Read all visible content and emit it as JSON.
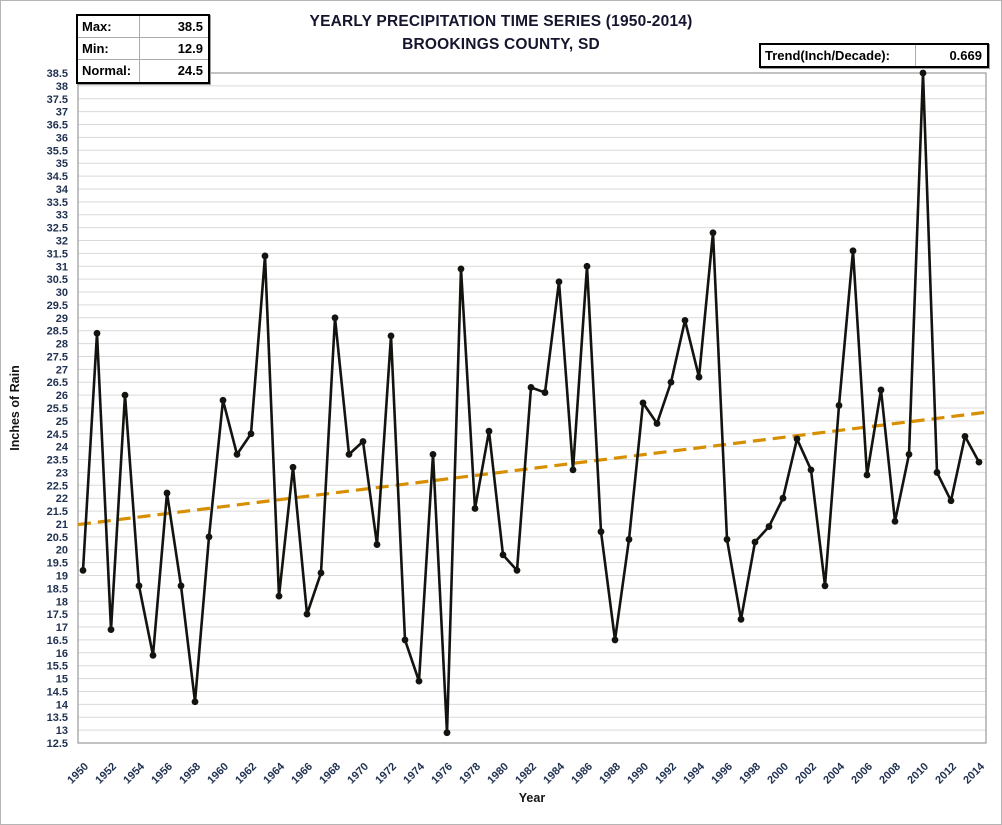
{
  "header": {
    "title_line1": "YEARLY PRECIPITATION TIME SERIES (1950-2014)",
    "title_line2": "BROOKINGS COUNTY, SD"
  },
  "stats_box": {
    "rows": [
      {
        "label": "Max:",
        "value": "38.5"
      },
      {
        "label": "Min:",
        "value": "12.9"
      },
      {
        "label": "Normal:",
        "value": "24.5"
      }
    ]
  },
  "trend_box": {
    "label": "Trend(Inch/Decade):",
    "value": "0.669"
  },
  "chart_data": {
    "type": "line",
    "title": "YEARLY PRECIPITATION TIME SERIES (1950-2014)",
    "subtitle": "BROOKINGS COUNTY, SD",
    "xlabel": "Year",
    "ylabel": "Inches of Rain",
    "ylim": [
      12.5,
      38.5
    ],
    "ytick_step": 0.5,
    "xtick_interval": 2,
    "grid": true,
    "legend_position": "none",
    "x": [
      1950,
      1951,
      1952,
      1953,
      1954,
      1955,
      1956,
      1957,
      1958,
      1959,
      1960,
      1961,
      1962,
      1963,
      1964,
      1965,
      1966,
      1967,
      1968,
      1969,
      1970,
      1971,
      1972,
      1973,
      1974,
      1975,
      1976,
      1977,
      1978,
      1979,
      1980,
      1981,
      1982,
      1983,
      1984,
      1985,
      1986,
      1987,
      1988,
      1989,
      1990,
      1991,
      1992,
      1993,
      1994,
      1995,
      1996,
      1997,
      1998,
      1999,
      2000,
      2001,
      2002,
      2003,
      2004,
      2005,
      2006,
      2007,
      2008,
      2009,
      2010,
      2011,
      2012,
      2013,
      2014
    ],
    "values": [
      19.2,
      28.4,
      16.9,
      26.0,
      18.6,
      15.9,
      22.2,
      18.6,
      14.1,
      20.5,
      25.8,
      23.7,
      24.5,
      31.4,
      18.2,
      23.2,
      17.5,
      19.1,
      29.0,
      23.7,
      24.2,
      20.2,
      28.3,
      16.5,
      14.9,
      23.7,
      12.9,
      30.9,
      21.6,
      24.6,
      19.8,
      19.2,
      26.3,
      26.1,
      30.4,
      23.1,
      31.0,
      20.7,
      16.5,
      20.4,
      25.7,
      24.9,
      26.5,
      28.9,
      26.7,
      32.3,
      20.4,
      17.3,
      20.3,
      20.9,
      22.0,
      24.3,
      23.1,
      18.6,
      25.6,
      31.6,
      22.9,
      26.2,
      21.1,
      23.7,
      38.5,
      23.0,
      21.9,
      24.4,
      23.4
    ],
    "trend": {
      "per_decade": 0.669,
      "value_1950": 21.0,
      "value_2014": 25.3,
      "style": "dashed"
    },
    "colors": {
      "series": "#11140f",
      "trend": "#d78f00",
      "gridline": "#d9d9d9",
      "plot_border": "#9a9a9a",
      "tick_label": "#1f3050"
    }
  }
}
